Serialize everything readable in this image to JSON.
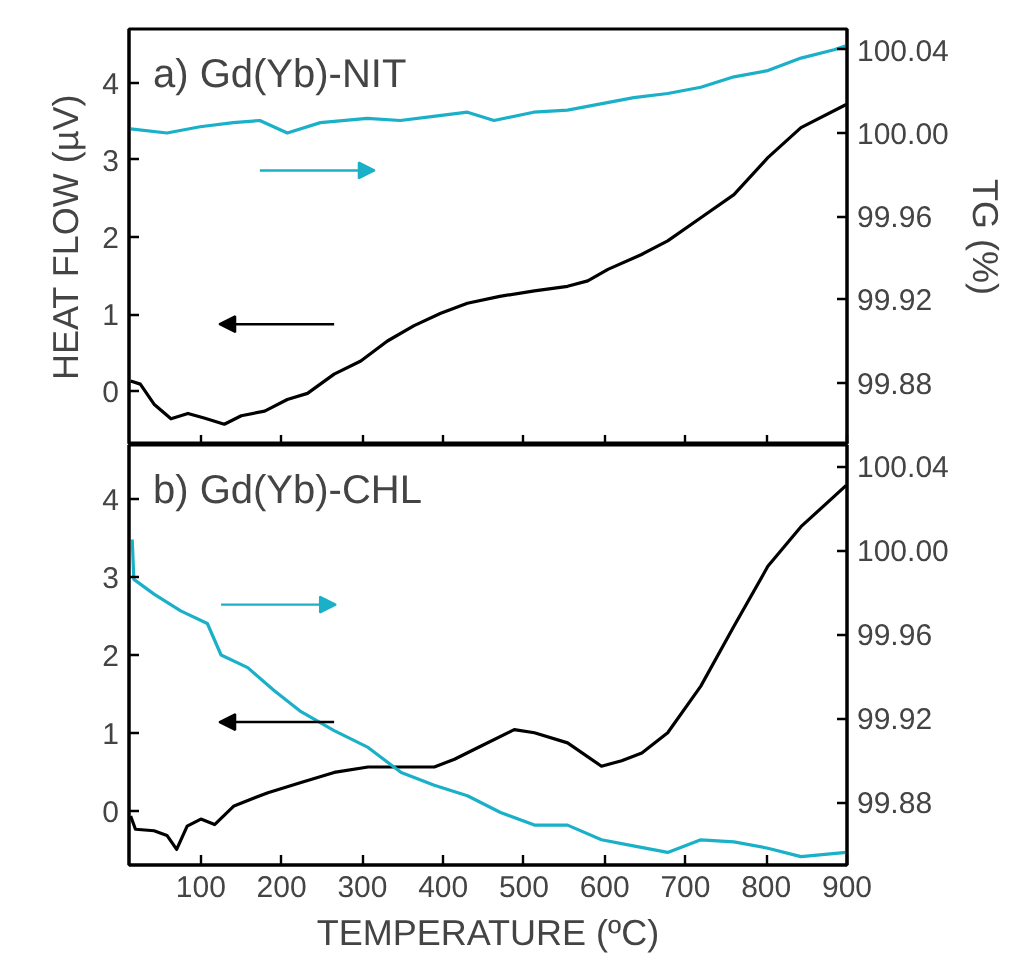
{
  "chart_data": [
    {
      "type": "line",
      "ylabel": "HEAT FLOW (µV)",
      "y2label": "TG (%)",
      "annotations": [
        "a) Gd(Yb)-NIT"
      ],
      "xlim": [
        11,
        900
      ],
      "xticks": [
        100,
        200,
        300,
        400,
        500,
        600,
        700,
        800,
        900
      ],
      "ylim": [
        -0.7,
        4.7
      ],
      "yticks": [
        0,
        1,
        2,
        3,
        4
      ],
      "y2lim": [
        99.85,
        100.05
      ],
      "y2ticks": [
        99.88,
        99.92,
        99.96,
        {
          "value": 100.0,
          "label": "100.00"
        },
        100.04
      ],
      "tick_labels": "y",
      "grid": false,
      "series": [
        {
          "color": "#000000",
          "x": [
            13,
            25,
            42,
            63,
            84,
            104,
            129,
            150,
            179,
            207,
            232,
            265,
            298,
            331,
            364,
            397,
            430,
            470,
            513,
            554,
            579,
            604,
            645,
            678,
            719,
            760,
            802,
            843,
            899
          ],
          "values": [
            0.13,
            0.09,
            -0.17,
            -0.36,
            -0.29,
            -0.35,
            -0.43,
            -0.32,
            -0.26,
            -0.11,
            -0.03,
            0.22,
            0.39,
            0.65,
            0.85,
            1.01,
            1.14,
            1.23,
            1.3,
            1.36,
            1.43,
            1.58,
            1.77,
            1.95,
            2.25,
            2.55,
            3.03,
            3.42,
            3.72
          ]
        },
        {
          "color": "#1ab0c8",
          "axis": "y2",
          "x": [
            13,
            58,
            99,
            140,
            173,
            207,
            248,
            306,
            347,
            388,
            430,
            463,
            512,
            554,
            595,
            636,
            678,
            719,
            760,
            802,
            843,
            884,
            899
          ],
          "values": [
            100.002,
            100.0,
            100.003,
            100.005,
            100.006,
            100.0,
            100.005,
            100.007,
            100.006,
            100.008,
            100.01,
            100.006,
            100.01,
            100.011,
            100.014,
            100.017,
            100.019,
            100.022,
            100.027,
            100.03,
            100.036,
            100.04,
            100.042
          ]
        }
      ]
    },
    {
      "type": "line",
      "xlabel": "TEMPERATURE (ºC)",
      "annotations": [
        "b) Gd(Yb)-CHL"
      ],
      "xlim": [
        11,
        900
      ],
      "xticks": [
        100,
        200,
        300,
        400,
        500,
        600,
        700,
        800,
        900
      ],
      "ylim": [
        -0.7,
        4.7
      ],
      "yticks": [
        0,
        1,
        2,
        3,
        4
      ],
      "y2lim": [
        99.85,
        100.05
      ],
      "y2ticks": [
        99.88,
        99.92,
        99.96,
        {
          "value": 100.0,
          "label": "100.00"
        },
        100.04
      ],
      "grid": false,
      "series": [
        {
          "color": "#000000",
          "x": [
            13,
            19,
            42,
            58,
            70,
            83,
            100,
            117,
            141,
            183,
            224,
            265,
            307,
            348,
            389,
            414,
            447,
            488,
            513,
            554,
            596,
            621,
            646,
            678,
            719,
            760,
            802,
            843,
            899
          ],
          "values": [
            -0.07,
            -0.24,
            -0.26,
            -0.32,
            -0.5,
            -0.2,
            -0.11,
            -0.18,
            0.06,
            0.23,
            0.36,
            0.49,
            0.56,
            0.56,
            0.56,
            0.66,
            0.83,
            1.04,
            1.0,
            0.87,
            0.57,
            0.64,
            0.74,
            1.0,
            1.6,
            2.37,
            3.14,
            3.65,
            4.18
          ]
        },
        {
          "color": "#1ab0c8",
          "axis": "y2",
          "x": [
            15,
            17,
            42,
            75,
            108,
            125,
            158,
            191,
            224,
            265,
            307,
            348,
            389,
            430,
            471,
            513,
            554,
            596,
            637,
            678,
            719,
            760,
            802,
            843,
            899
          ],
          "values": [
            100.005,
            99.986,
            99.979,
            99.971,
            99.965,
            99.95,
            99.944,
            99.933,
            99.923,
            99.914,
            99.906,
            99.894,
            99.888,
            99.883,
            99.875,
            99.869,
            99.869,
            99.862,
            99.859,
            99.856,
            99.862,
            99.861,
            99.858,
            99.854,
            99.856
          ]
        }
      ]
    }
  ]
}
